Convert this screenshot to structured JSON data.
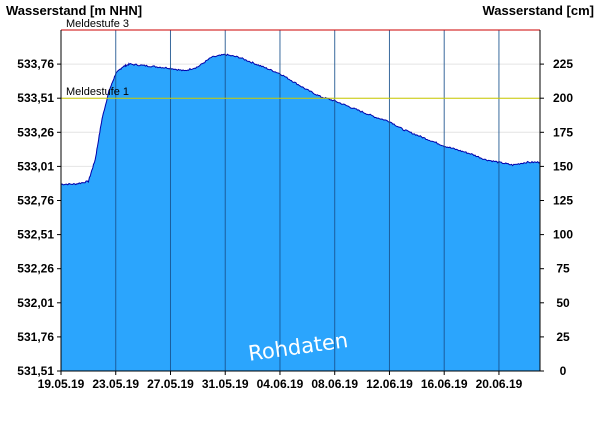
{
  "chart_data": {
    "type": "area",
    "ylabel_left": "Wasserstand  [m NHN]",
    "ylabel_right": "Wasserstand [cm]",
    "watermark": "Rohdaten",
    "x_ticks": [
      "19.05.19",
      "23.05.19",
      "27.05.19",
      "31.05.19",
      "04.06.19",
      "08.06.19",
      "12.06.19",
      "16.06.19",
      "20.06.19"
    ],
    "x_start": "2019-05-19",
    "x_end": "2019-06-23",
    "y_left_ticks": [
      "531,51",
      "531,76",
      "532,01",
      "532,26",
      "532,51",
      "532,76",
      "533,01",
      "533,26",
      "533,51",
      "533,76"
    ],
    "y_right_ticks": [
      "0",
      "25",
      "50",
      "75",
      "100",
      "125",
      "150",
      "175",
      "200",
      "225"
    ],
    "ylim_cm": [
      0,
      250
    ],
    "grid": true,
    "fill_color": "#2ba5fd",
    "line_color": "#0000aa",
    "thresholds": [
      {
        "label": "Meldestufe 3",
        "value_cm": 250,
        "color": "#cc0000"
      },
      {
        "label": "Meldestufe 1",
        "value_cm": 200,
        "color": "#cccc00"
      }
    ],
    "series": [
      {
        "x": [
          "2019-05-19",
          "2019-05-20",
          "2019-05-21",
          "2019-05-21T12:00",
          "2019-05-22",
          "2019-05-22T12:00",
          "2019-05-23",
          "2019-05-23T12:00",
          "2019-05-24",
          "2019-05-25",
          "2019-05-26",
          "2019-05-27",
          "2019-05-28",
          "2019-05-29",
          "2019-05-30",
          "2019-05-31",
          "2019-06-01",
          "2019-06-02",
          "2019-06-03",
          "2019-06-04",
          "2019-06-05",
          "2019-06-06",
          "2019-06-07",
          "2019-06-08",
          "2019-06-09",
          "2019-06-10",
          "2019-06-11",
          "2019-06-12",
          "2019-06-13",
          "2019-06-14",
          "2019-06-15",
          "2019-06-16",
          "2019-06-17",
          "2019-06-18",
          "2019-06-19",
          "2019-06-20",
          "2019-06-21",
          "2019-06-22",
          "2019-06-23"
        ],
        "values": [
          137,
          137,
          139,
          155,
          185,
          205,
          218,
          223,
          225,
          224,
          223,
          222,
          220,
          223,
          230,
          232,
          230,
          226,
          222,
          218,
          212,
          206,
          201,
          198,
          194,
          190,
          186,
          183,
          177,
          173,
          169,
          165,
          162,
          159,
          155,
          153,
          151,
          153,
          153
        ]
      }
    ]
  }
}
